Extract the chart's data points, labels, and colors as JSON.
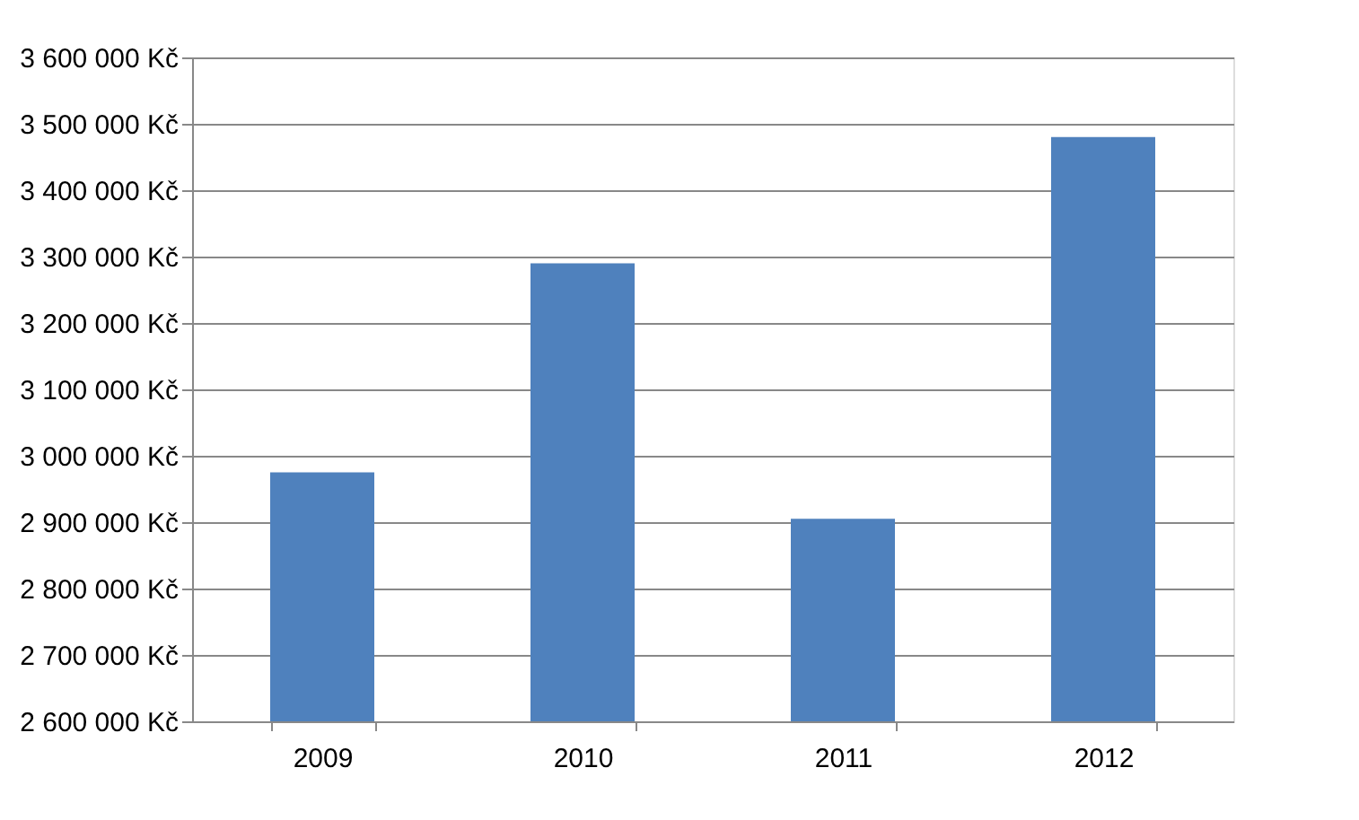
{
  "chart_data": {
    "type": "bar",
    "categories": [
      "2009",
      "2010",
      "2011",
      "2012"
    ],
    "values": [
      2975000,
      3290000,
      2905000,
      3480000
    ],
    "color": "#4f81bd",
    "ylim": [
      2600000,
      3600000
    ],
    "yticks": [
      {
        "value": 2600000,
        "label": "2 600 000 Kč"
      },
      {
        "value": 2700000,
        "label": "2 700 000 Kč"
      },
      {
        "value": 2800000,
        "label": "2 800 000 Kč"
      },
      {
        "value": 2900000,
        "label": "2 900 000 Kč"
      },
      {
        "value": 3000000,
        "label": "3 000 000 Kč"
      },
      {
        "value": 3100000,
        "label": "3 100 000 Kč"
      },
      {
        "value": 3200000,
        "label": "3 200 000 Kč"
      },
      {
        "value": 3300000,
        "label": "3 300 000 Kč"
      },
      {
        "value": 3400000,
        "label": "3 400 000 Kč"
      },
      {
        "value": 3500000,
        "label": "3 500 000 Kč"
      },
      {
        "value": 3600000,
        "label": "3 600 000 Kč"
      }
    ],
    "grid": "y"
  }
}
